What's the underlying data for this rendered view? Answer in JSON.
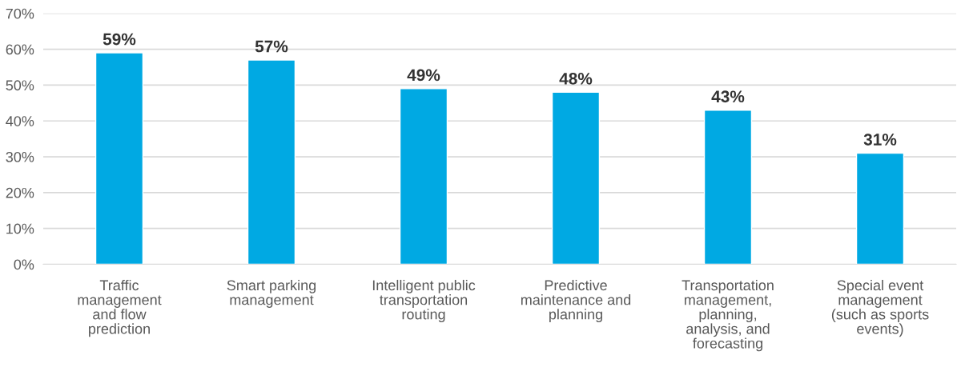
{
  "chart_data": {
    "type": "bar",
    "categories": [
      "Traffic\nmanagement\nand flow\nprediction",
      "Smart parking\nmanagement",
      "Intelligent public\ntransportation\nrouting",
      "Predictive\nmaintenance and\nplanning",
      "Transportation\nmanagement,\nplanning,\nanalysis, and\nforecasting",
      "Special event\nmanagement\n(such as sports\nevents)"
    ],
    "values": [
      59,
      57,
      49,
      48,
      43,
      31
    ],
    "value_labels": [
      "59%",
      "57%",
      "49%",
      "48%",
      "43%",
      "31%"
    ],
    "color": "#00a9e3",
    "ylim": [
      0,
      70
    ],
    "yticks": [
      {
        "value": 0,
        "label": "0%"
      },
      {
        "value": 10,
        "label": "10%"
      },
      {
        "value": 20,
        "label": "20%"
      },
      {
        "value": 30,
        "label": "30%"
      },
      {
        "value": 40,
        "label": "40%"
      },
      {
        "value": 50,
        "label": "50%"
      },
      {
        "value": 60,
        "label": "60%"
      },
      {
        "value": 70,
        "label": "70%"
      }
    ],
    "grid": "y"
  }
}
